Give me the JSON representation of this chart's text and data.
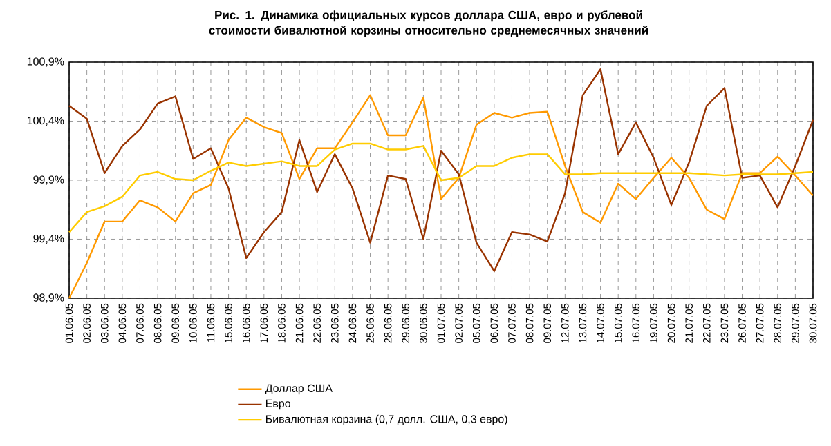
{
  "chart_data": {
    "type": "line",
    "title": "Рис. 1. Динамика официальных курсов доллара США, евро и рублевой стоимости бивалютной корзины относительно среднемесячных значений",
    "categories": [
      "01.06.05",
      "02.06.05",
      "03.06.05",
      "04.06.05",
      "07.06.05",
      "08.06.05",
      "09.06.05",
      "10.06.05",
      "11.06.05",
      "15.06.05",
      "16.06.05",
      "17.06.05",
      "18.06.05",
      "21.06.05",
      "22.06.05",
      "23.06.05",
      "24.06.05",
      "25.06.05",
      "28.06.05",
      "29.06.05",
      "30.06.05",
      "01.07.05",
      "02.07.05",
      "05.07.05",
      "06.07.05",
      "07.07.05",
      "08.07.05",
      "09.07.05",
      "12.07.05",
      "13.07.05",
      "14.07.05",
      "15.07.05",
      "16.07.05",
      "19.07.05",
      "20.07.05",
      "21.07.05",
      "22.07.05",
      "23.07.05",
      "26.07.05",
      "27.07.05",
      "28.07.05",
      "29.07.05",
      "30.07.05"
    ],
    "series": [
      {
        "name": "Доллар США",
        "color": "#ff9900",
        "values": [
          98.9,
          99.2,
          99.55,
          99.55,
          99.73,
          99.67,
          99.55,
          99.79,
          99.86,
          100.24,
          100.43,
          100.35,
          100.3,
          99.91,
          100.17,
          100.17,
          100.39,
          100.62,
          100.28,
          100.28,
          100.6,
          99.74,
          99.92,
          100.37,
          100.47,
          100.43,
          100.47,
          100.48,
          100.02,
          99.63,
          99.54,
          99.87,
          99.74,
          99.92,
          100.09,
          99.92,
          99.65,
          99.57,
          99.96,
          99.96,
          100.1,
          99.94,
          99.77
        ]
      },
      {
        "name": "Евро",
        "color": "#993300",
        "values": [
          100.53,
          100.42,
          99.96,
          100.19,
          100.33,
          100.55,
          100.61,
          100.08,
          100.17,
          99.83,
          99.24,
          99.46,
          99.63,
          100.24,
          99.8,
          100.12,
          99.83,
          99.37,
          99.94,
          99.91,
          99.4,
          100.15,
          99.95,
          99.37,
          99.13,
          99.46,
          99.44,
          99.38,
          99.79,
          100.62,
          100.84,
          100.12,
          100.39,
          100.09,
          99.69,
          100.05,
          100.53,
          100.68,
          99.92,
          99.94,
          99.67,
          100.02,
          100.41
        ]
      },
      {
        "name": "Бивалютная корзина (0,7 долл. США, 0,3 евро)",
        "color": "#ffcc00",
        "values": [
          99.46,
          99.63,
          99.68,
          99.76,
          99.94,
          99.97,
          99.91,
          99.9,
          99.98,
          100.05,
          100.02,
          100.04,
          100.06,
          100.02,
          100.02,
          100.16,
          100.21,
          100.21,
          100.16,
          100.16,
          100.19,
          99.9,
          99.92,
          100.02,
          100.02,
          100.09,
          100.12,
          100.12,
          99.95,
          99.95,
          99.96,
          99.96,
          99.96,
          99.96,
          99.96,
          99.96,
          99.95,
          99.94,
          99.95,
          99.95,
          99.95,
          99.96,
          99.97
        ]
      }
    ],
    "ylim": [
      98.9,
      100.9
    ],
    "yticks": [
      {
        "value": 98.9,
        "label": "98,9%"
      },
      {
        "value": 99.4,
        "label": "99,4%"
      },
      {
        "value": 99.9,
        "label": "99,9%"
      },
      {
        "value": 100.4,
        "label": "100,4%"
      },
      {
        "value": 100.9,
        "label": "100,9%"
      }
    ],
    "grid": true,
    "legend": "bottom",
    "marker": "none",
    "line_style": "solid"
  }
}
